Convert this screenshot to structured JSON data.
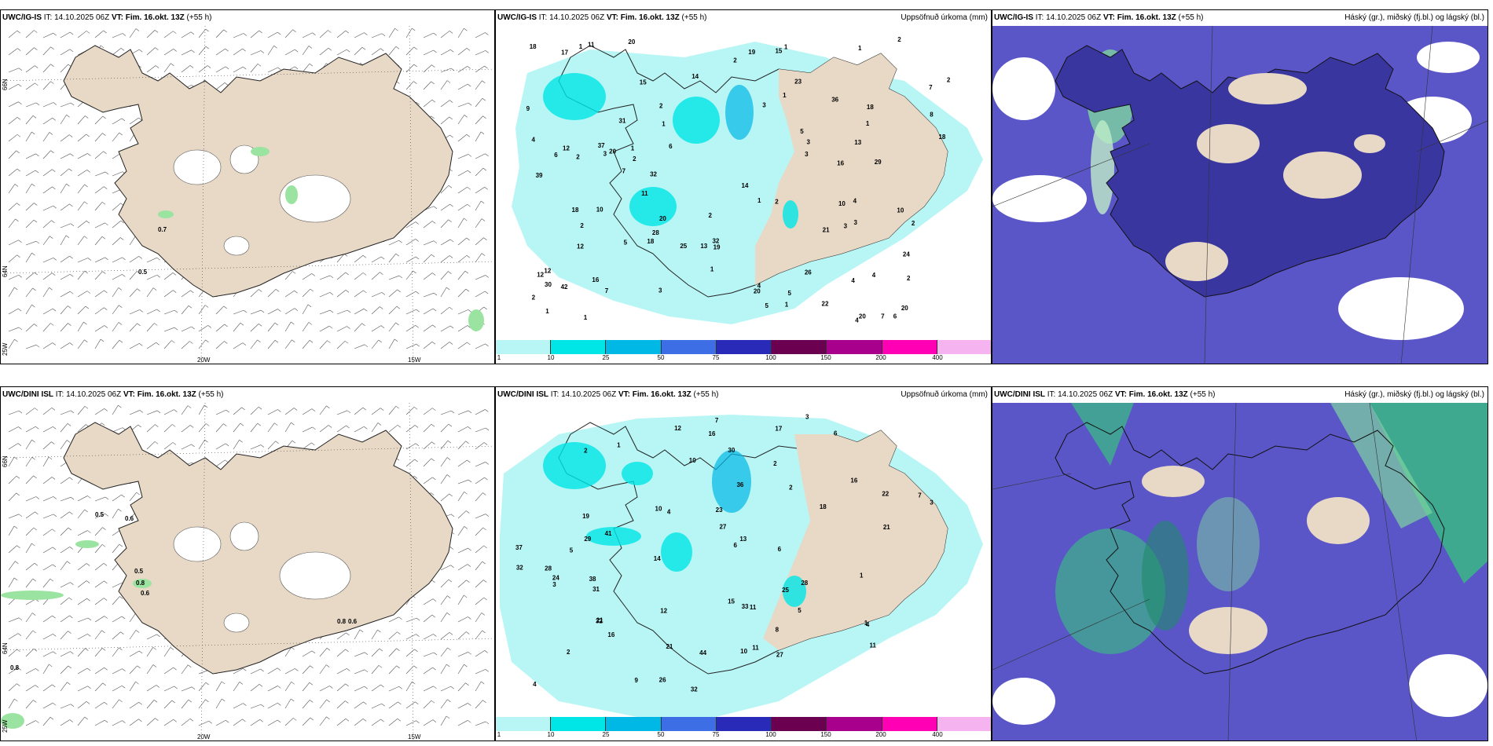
{
  "panels": [
    {
      "id": "top-wind",
      "title_model": "UWC/IG-IS",
      "title_it": " IT: 14.10.2025 06Z ",
      "title_vt": "VT: Fim. 16.okt. 13Z",
      "title_lead": " (+55 h)",
      "right_label": "",
      "values": [
        "0.7",
        "0.5"
      ]
    },
    {
      "id": "top-precip",
      "title_model": "UWC/IG-IS",
      "title_it": " IT: 14.10.2025 06Z ",
      "title_vt": "VT: Fim. 16.okt. 13Z",
      "title_lead": " (+55 h)",
      "right_label": "Uppsöfnuð úrkoma (mm)"
    },
    {
      "id": "top-cloud",
      "title_model": "UWC/IG-IS",
      "title_it": " IT: 14.10.2025 06Z ",
      "title_vt": "VT: Fim. 16.okt. 13Z",
      "title_lead": " (+55 h)",
      "right_label": "Háský (gr.), miðský (fj.bl.) og lágský (bl.)"
    },
    {
      "id": "bottom-wind",
      "title_model": "UWC/DINI ISL",
      "title_it": " IT: 14.10.2025 06Z ",
      "title_vt": "VT: Fim. 16.okt. 13Z",
      "title_lead": " (+55 h)",
      "right_label": "",
      "values": [
        "0.5",
        "0.6",
        "0.5",
        "0.8",
        "0.6",
        "0.8",
        "0.6",
        "0.8"
      ]
    },
    {
      "id": "bottom-precip",
      "title_model": "UWC/DINI ISL",
      "title_it": " IT: 14.10.2025 06Z ",
      "title_vt": "VT: Fim. 16.okt. 13Z",
      "title_lead": " (+55 h)",
      "right_label": "Uppsöfnuð úrkoma (mm)"
    },
    {
      "id": "bottom-cloud",
      "title_model": "UWC/DINI ISL",
      "title_it": " IT: 14.10.2025 06Z ",
      "title_vt": "VT: Fim. 16.okt. 13Z",
      "title_lead": " (+55 h)",
      "right_label": "Háský (gr.), miðský (fj.bl.) og lágský (bl.)"
    }
  ],
  "axis_labels": {
    "lon_20": "20W",
    "lon_15": "15W",
    "lat_66": "66N",
    "lat_64": "64N",
    "lon_25": "25W"
  },
  "colorbar": {
    "ticks": [
      "1",
      "10",
      "25",
      "50",
      "75",
      "100",
      "150",
      "200",
      "400"
    ],
    "colors": [
      "#b8f6f6",
      "#00e6e6",
      "#00b8e6",
      "#3d6ee6",
      "#2a2ab8",
      "#6b0050",
      "#a8008c",
      "#ff00b4",
      "#f5b4f0"
    ]
  },
  "precip_numbers_top": [
    "2",
    "3",
    "1",
    "4",
    "6",
    "15",
    "13",
    "11",
    "18",
    "16",
    "29",
    "19",
    "18",
    "20",
    "32",
    "26",
    "14",
    "18",
    "7",
    "6",
    "7",
    "20",
    "5",
    "5",
    "4",
    "3",
    "20",
    "12",
    "18",
    "12",
    "28",
    "25",
    "42",
    "24",
    "36",
    "4",
    "12",
    "11",
    "10",
    "3",
    "39",
    "20",
    "10",
    "22",
    "19",
    "30",
    "32",
    "31",
    "20",
    "23",
    "5",
    "13",
    "2",
    "1",
    "8",
    "5",
    "7",
    "17",
    "12",
    "16",
    "15",
    "14",
    "9",
    "10",
    "4",
    "6",
    "2",
    "3",
    "21",
    "20",
    "18",
    "37",
    "1",
    "1",
    "2",
    "4",
    "2",
    "2",
    "2",
    "4",
    "2",
    "1",
    "3",
    "1",
    "2",
    "1",
    "2",
    "1",
    "1",
    "1",
    "1",
    "1",
    "7",
    "3",
    "2",
    "3",
    "2"
  ],
  "precip_numbers_bottom": [
    "2",
    "6",
    "1",
    "16",
    "33",
    "41",
    "31",
    "21",
    "22",
    "18",
    "28",
    "7",
    "5",
    "6",
    "32",
    "12",
    "11",
    "37",
    "32",
    "26",
    "27",
    "16",
    "10",
    "13",
    "27",
    "21",
    "24",
    "17",
    "36",
    "28",
    "19",
    "16",
    "11",
    "15",
    "4",
    "3",
    "7",
    "6",
    "2",
    "1",
    "3",
    "30",
    "44",
    "38",
    "32",
    "29",
    "25",
    "10",
    "12",
    "8",
    "4",
    "9",
    "23",
    "21",
    "14",
    "11",
    "10",
    "1",
    "2",
    "5",
    "4",
    "3",
    "2"
  ],
  "colors": {
    "land": "#e8d9c6",
    "sea": "#ffffff",
    "precip_light": "#b8f6f6",
    "precip_mid": "#00e6e6",
    "precip_high": "#00b8e6",
    "cloud_low": "#5a56c8",
    "cloud_mid": "#3a36a0",
    "cloud_high": "#3cb389",
    "wind_green": "#9be3a0"
  }
}
